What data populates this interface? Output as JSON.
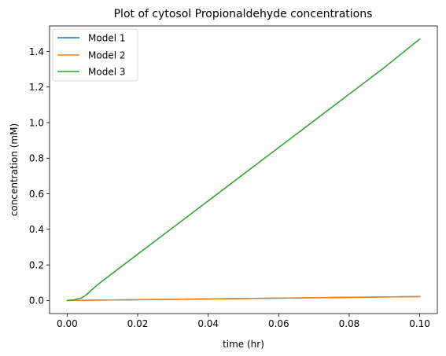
{
  "chart_data": {
    "type": "line",
    "title": "Plot of cytosol Propionaldehyde concentrations",
    "xlabel": "time (hr)",
    "ylabel": "concentration (mM)",
    "xlim": [
      -0.005,
      0.105
    ],
    "ylim": [
      -0.0735,
      1.5435
    ],
    "xticks": [
      0.0,
      0.02,
      0.04,
      0.06,
      0.08,
      0.1
    ],
    "xtick_labels": [
      "0.00",
      "0.02",
      "0.04",
      "0.06",
      "0.08",
      "0.10"
    ],
    "yticks": [
      0.0,
      0.2,
      0.4,
      0.6,
      0.8,
      1.0,
      1.2,
      1.4
    ],
    "ytick_labels": [
      "0.0",
      "0.2",
      "0.4",
      "0.6",
      "0.8",
      "1.0",
      "1.2",
      "1.4"
    ],
    "grid": false,
    "legend_position": "top-left",
    "series": [
      {
        "name": "Model 1",
        "color": "#1f77b4",
        "x": [
          0.0,
          0.01,
          0.02,
          0.03,
          0.04,
          0.05,
          0.06,
          0.07,
          0.08,
          0.09,
          0.1
        ],
        "y": [
          0.0,
          0.0021,
          0.0043,
          0.0065,
          0.0087,
          0.0109,
          0.0131,
          0.0153,
          0.0175,
          0.0197,
          0.022
        ]
      },
      {
        "name": "Model 2",
        "color": "#ff7f0e",
        "x": [
          0.0,
          0.01,
          0.02,
          0.03,
          0.04,
          0.05,
          0.06,
          0.07,
          0.08,
          0.09,
          0.1
        ],
        "y": [
          0.0,
          0.0022,
          0.0044,
          0.0066,
          0.0088,
          0.011,
          0.0132,
          0.0154,
          0.0176,
          0.0198,
          0.022
        ]
      },
      {
        "name": "Model 3",
        "color": "#2ca02c",
        "x": [
          0.0,
          0.002,
          0.004,
          0.005,
          0.006,
          0.007,
          0.008,
          0.01,
          0.015,
          0.02,
          0.03,
          0.04,
          0.05,
          0.06,
          0.07,
          0.08,
          0.09,
          0.1
        ],
        "y": [
          0.0,
          0.004,
          0.014,
          0.026,
          0.042,
          0.06,
          0.078,
          0.11,
          0.185,
          0.26,
          0.41,
          0.56,
          0.71,
          0.86,
          1.01,
          1.16,
          1.31,
          1.47
        ]
      }
    ]
  }
}
